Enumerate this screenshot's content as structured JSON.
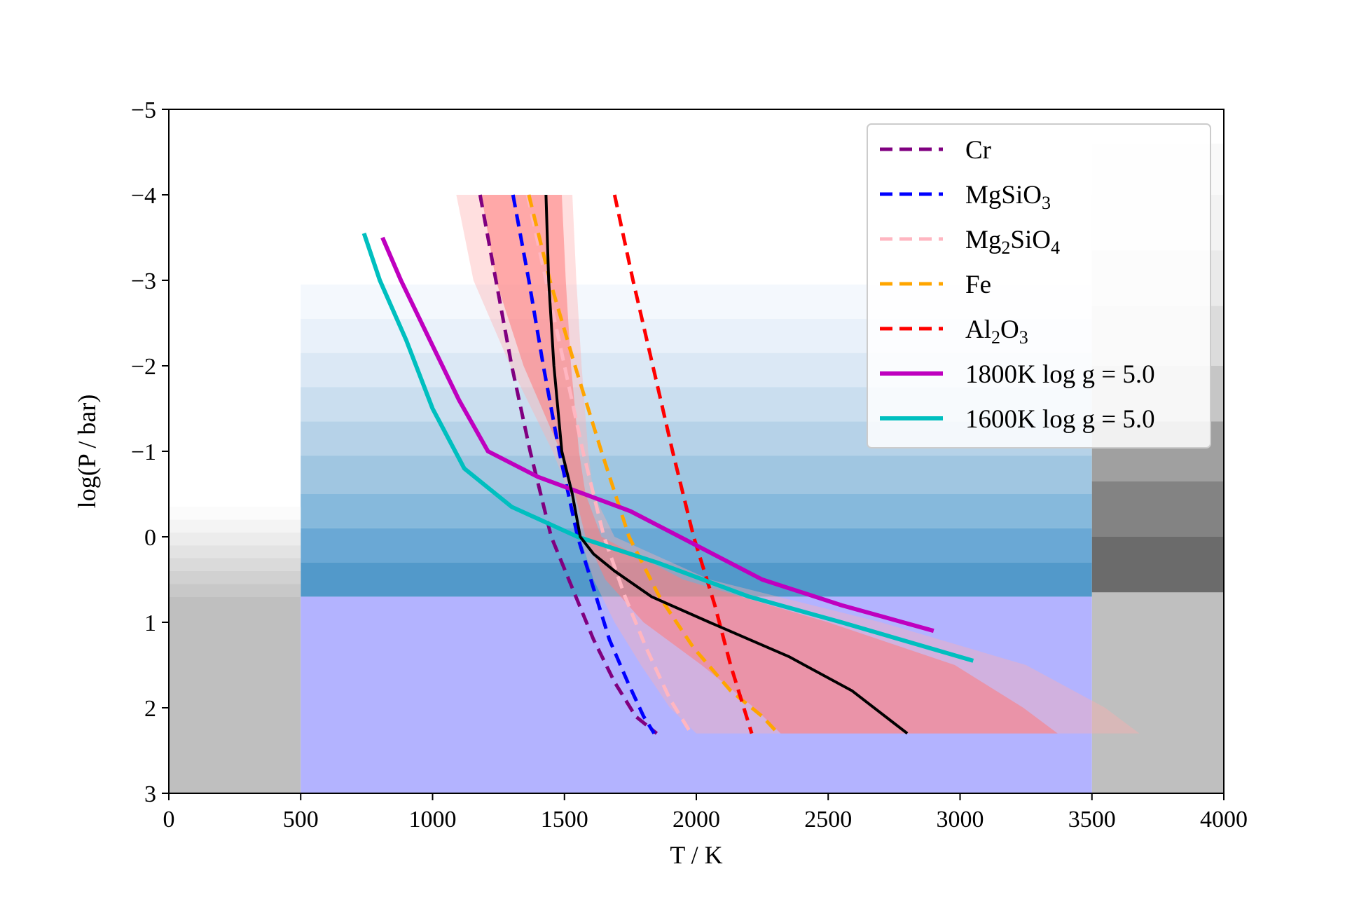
{
  "chart_data": {
    "type": "line",
    "title": "",
    "xlabel": "T / K",
    "ylabel": "log(P / bar)",
    "xlim": [
      0,
      4000
    ],
    "ylim": [
      3,
      -5
    ],
    "y_inverted": true,
    "x_ticks": [
      "0",
      "500",
      "1000",
      "1500",
      "2000",
      "2500",
      "3000",
      "3500",
      "4000"
    ],
    "y_ticks": [
      "−5",
      "−4",
      "−3",
      "−2",
      "−1",
      "0",
      "1",
      "2",
      "3"
    ],
    "grid": false,
    "legend_position": "top-right",
    "colors": {
      "gray_region": "#bfbfbf",
      "violet_region": "#b3b3ff",
      "envelope_light": "#ffb0b0",
      "envelope_dark": "#ff7a7a",
      "profile": "#000000"
    },
    "background_regions": [
      {
        "kind": "gray",
        "x": [
          0,
          500
        ],
        "y": [
          0.7,
          3
        ]
      },
      {
        "kind": "gray",
        "x": [
          3500,
          4000
        ],
        "y": [
          0.65,
          3
        ]
      },
      {
        "kind": "violet",
        "x": [
          500,
          3500
        ],
        "y": [
          0.7,
          3
        ]
      }
    ],
    "blue_bands": [
      {
        "y": [
          -2.95,
          -2.55
        ],
        "color": "#f4f8fd"
      },
      {
        "y": [
          -2.55,
          -2.15
        ],
        "color": "#e9f1fa"
      },
      {
        "y": [
          -2.15,
          -1.75
        ],
        "color": "#dbe8f5"
      },
      {
        "y": [
          -1.75,
          -1.35
        ],
        "color": "#cadeef"
      },
      {
        "y": [
          -1.35,
          -0.95
        ],
        "color": "#b6d2e8"
      },
      {
        "y": [
          -0.95,
          -0.5
        ],
        "color": "#a0c6e1"
      },
      {
        "y": [
          -0.5,
          -0.1
        ],
        "color": "#86b9dc"
      },
      {
        "y": [
          -0.1,
          0.3
        ],
        "color": "#6aa8d5"
      },
      {
        "y": [
          0.3,
          0.7
        ],
        "color": "#5299ca"
      }
    ],
    "left_gray_bands": [
      {
        "y": [
          -0.35,
          -0.2
        ],
        "color": "#fbfbfb"
      },
      {
        "y": [
          -0.2,
          -0.05
        ],
        "color": "#f4f4f4"
      },
      {
        "y": [
          -0.05,
          0.1
        ],
        "color": "#ececec"
      },
      {
        "y": [
          0.1,
          0.25
        ],
        "color": "#e3e3e3"
      },
      {
        "y": [
          0.25,
          0.4
        ],
        "color": "#dadada"
      },
      {
        "y": [
          0.4,
          0.55
        ],
        "color": "#d1d1d1"
      },
      {
        "y": [
          0.55,
          0.7
        ],
        "color": "#c8c8c8"
      }
    ],
    "right_gray_bands": [
      {
        "y": [
          -4.6,
          -4.0
        ],
        "color": "#f9f9f9"
      },
      {
        "y": [
          -4.0,
          -3.35
        ],
        "color": "#f3f3f3"
      },
      {
        "y": [
          -3.35,
          -2.7
        ],
        "color": "#eaeaea"
      },
      {
        "y": [
          -2.7,
          -2.0
        ],
        "color": "#dcdcdc"
      },
      {
        "y": [
          -2.0,
          -1.35
        ],
        "color": "#c6c6c6"
      },
      {
        "y": [
          -1.35,
          -0.65
        ],
        "color": "#a0a0a0"
      },
      {
        "y": [
          -0.65,
          0.0
        ],
        "color": "#838383"
      },
      {
        "y": [
          0.0,
          0.65
        ],
        "color": "#6b6b6b"
      }
    ],
    "envelopes": [
      {
        "name": "outer",
        "color": "#ffb0b0",
        "opacity": 0.4,
        "y": [
          -4.0,
          -3.0,
          -2.0,
          -1.0,
          -0.5,
          0.0,
          0.5,
          1.0,
          1.5,
          2.0,
          2.3
        ],
        "left": [
          1090,
          1155,
          1295,
          1455,
          1520,
          1560,
          1610,
          1690,
          1790,
          1900,
          2000
        ],
        "right": [
          1530,
          1545,
          1565,
          1590,
          1610,
          1690,
          2050,
          2700,
          3250,
          3550,
          3680
        ]
      },
      {
        "name": "inner",
        "color": "#ff7a7a",
        "opacity": 0.55,
        "y": [
          -4.0,
          -3.0,
          -2.0,
          -1.0,
          -0.5,
          0.0,
          0.5,
          1.0,
          1.5,
          2.0,
          2.3
        ],
        "left": [
          1185,
          1240,
          1345,
          1485,
          1540,
          1580,
          1655,
          1800,
          2020,
          2220,
          2320
        ],
        "right": [
          1490,
          1505,
          1525,
          1555,
          1580,
          1640,
          1950,
          2500,
          2980,
          3240,
          3370
        ]
      }
    ],
    "series": [
      {
        "name": "Cr",
        "style": "dashed",
        "color": "#800080",
        "x": [
          1180,
          1240,
          1300,
          1370,
          1450,
          1530,
          1610,
          1690,
          1770,
          1850
        ],
        "y": [
          -4.0,
          -3.0,
          -2.0,
          -1.0,
          0.0,
          0.6,
          1.2,
          1.7,
          2.1,
          2.3
        ]
      },
      {
        "name": "MgSiO₃",
        "label_main": "MgSiO",
        "label_sub": "3",
        "style": "dashed",
        "color": "#0000ff",
        "x": [
          1305,
          1365,
          1420,
          1480,
          1550,
          1610,
          1670,
          1740,
          1800,
          1840
        ],
        "y": [
          -4.0,
          -3.0,
          -2.0,
          -1.0,
          0.0,
          0.6,
          1.2,
          1.7,
          2.1,
          2.3
        ]
      },
      {
        "name": "Mg₂SiO₄",
        "label_main": "Mg",
        "label_sub": "2",
        "label_main2": "SiO",
        "label_sub2": "4",
        "style": "dashed",
        "color": "#ffb6c1",
        "x": [
          1360,
          1430,
          1500,
          1570,
          1650,
          1730,
          1810,
          1900,
          1980
        ],
        "y": [
          -4.0,
          -3.0,
          -2.0,
          -1.0,
          0.0,
          0.7,
          1.3,
          1.9,
          2.3
        ]
      },
      {
        "name": "Fe",
        "style": "dashed",
        "color": "#ffa500",
        "x": [
          1365,
          1445,
          1540,
          1640,
          1745,
          1860,
          1990,
          2130,
          2250,
          2310
        ],
        "y": [
          -4.0,
          -3.0,
          -2.0,
          -1.0,
          0.0,
          0.7,
          1.3,
          1.8,
          2.1,
          2.3
        ]
      },
      {
        "name": "Al₂O₃",
        "label_main": "Al",
        "label_sub": "2",
        "label_main2": "O",
        "label_sub2": "3",
        "style": "dashed",
        "color": "#ff0000",
        "x": [
          1690,
          1760,
          1835,
          1910,
          1990,
          2070,
          2130,
          2180,
          2210
        ],
        "y": [
          -4.0,
          -3.0,
          -2.0,
          -1.0,
          0.0,
          0.8,
          1.5,
          2.0,
          2.3
        ]
      },
      {
        "name": "1800K log g = 5.0",
        "style": "solid",
        "color": "#bf00bf",
        "x": [
          810,
          880,
          990,
          1100,
          1210,
          1400,
          1750,
          2000,
          2250,
          2550,
          2900
        ],
        "y": [
          -3.5,
          -3.0,
          -2.3,
          -1.6,
          -1.0,
          -0.7,
          -0.3,
          0.1,
          0.5,
          0.8,
          1.1
        ]
      },
      {
        "name": "1600K log g = 5.0",
        "style": "solid",
        "color": "#00bfbf",
        "x": [
          740,
          800,
          900,
          1000,
          1120,
          1300,
          1550,
          1850,
          2200,
          2550,
          3050
        ],
        "y": [
          -3.55,
          -3.0,
          -2.3,
          -1.5,
          -0.8,
          -0.35,
          0.0,
          0.3,
          0.7,
          1.0,
          1.45
        ]
      },
      {
        "name": "profile",
        "style": "solid",
        "color": "#000000",
        "x": [
          1430,
          1440,
          1460,
          1490,
          1530,
          1560,
          1610,
          1690,
          1830,
          2050,
          2350,
          2590,
          2800
        ],
        "y": [
          -4.0,
          -3.0,
          -2.0,
          -1.0,
          -0.5,
          0.0,
          0.2,
          0.4,
          0.7,
          1.0,
          1.4,
          1.8,
          2.3
        ]
      }
    ],
    "legend": [
      {
        "series": "Cr",
        "style": "dashed",
        "color": "#800080",
        "label": "Cr"
      },
      {
        "series": "MgSiO₃",
        "style": "dashed",
        "color": "#0000ff",
        "label": "MgSiO",
        "sub": "3"
      },
      {
        "series": "Mg₂SiO₄",
        "style": "dashed",
        "color": "#ffb6c1",
        "label": "Mg",
        "sub": "2",
        "label2": "SiO",
        "sub2": "4"
      },
      {
        "series": "Fe",
        "style": "dashed",
        "color": "#ffa500",
        "label": "Fe"
      },
      {
        "series": "Al₂O₃",
        "style": "dashed",
        "color": "#ff0000",
        "label": "Al",
        "sub": "2",
        "label2": "O",
        "sub2": "3"
      },
      {
        "series": "1800K log g = 5.0",
        "style": "solid",
        "color": "#bf00bf",
        "label": "1800K log g = 5.0"
      },
      {
        "series": "1600K log g = 5.0",
        "style": "solid",
        "color": "#00bfbf",
        "label": "1600K log g = 5.0"
      }
    ]
  }
}
